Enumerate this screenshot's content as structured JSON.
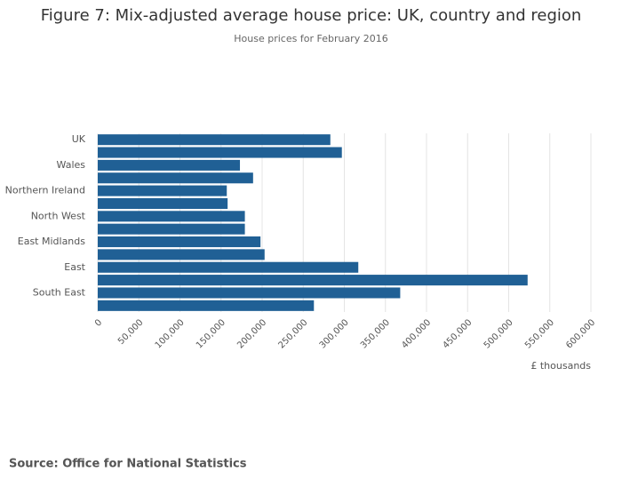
{
  "chart_data": {
    "type": "barh",
    "title": "Figure 7: Mix-adjusted average house price: UK, country and region",
    "subtitle": "House prices for February 2016",
    "categories": [
      "UK",
      null,
      "Wales",
      null,
      "Northern Ireland",
      null,
      "North West",
      null,
      "East Midlands",
      null,
      "East",
      null,
      "South East",
      null
    ],
    "values": [
      283000,
      297000,
      173000,
      189000,
      157000,
      158000,
      179000,
      179000,
      198000,
      203000,
      317000,
      523000,
      368000,
      263000
    ],
    "color": "#206095",
    "xlim": [
      0,
      600000
    ],
    "xticks": [
      0,
      {
        "value": 50000,
        "label": "50,000"
      },
      {
        "value": 100000,
        "label": "100,000"
      },
      {
        "value": 150000,
        "label": "150,000"
      },
      {
        "value": 200000,
        "label": "200,000"
      },
      {
        "value": 250000,
        "label": "250,000"
      },
      {
        "value": 300000,
        "label": "300,000"
      },
      {
        "value": 350000,
        "label": "350,000"
      },
      {
        "value": 400000,
        "label": "400,000"
      },
      {
        "value": 450000,
        "label": "450,000"
      },
      {
        "value": 500000,
        "label": "500,000"
      },
      {
        "value": 550000,
        "label": "550,000"
      },
      {
        "value": 600000,
        "label": "600,000"
      }
    ],
    "xlabel": "£ thousands",
    "grid": true,
    "source": "Source: Office for National Statistics"
  }
}
